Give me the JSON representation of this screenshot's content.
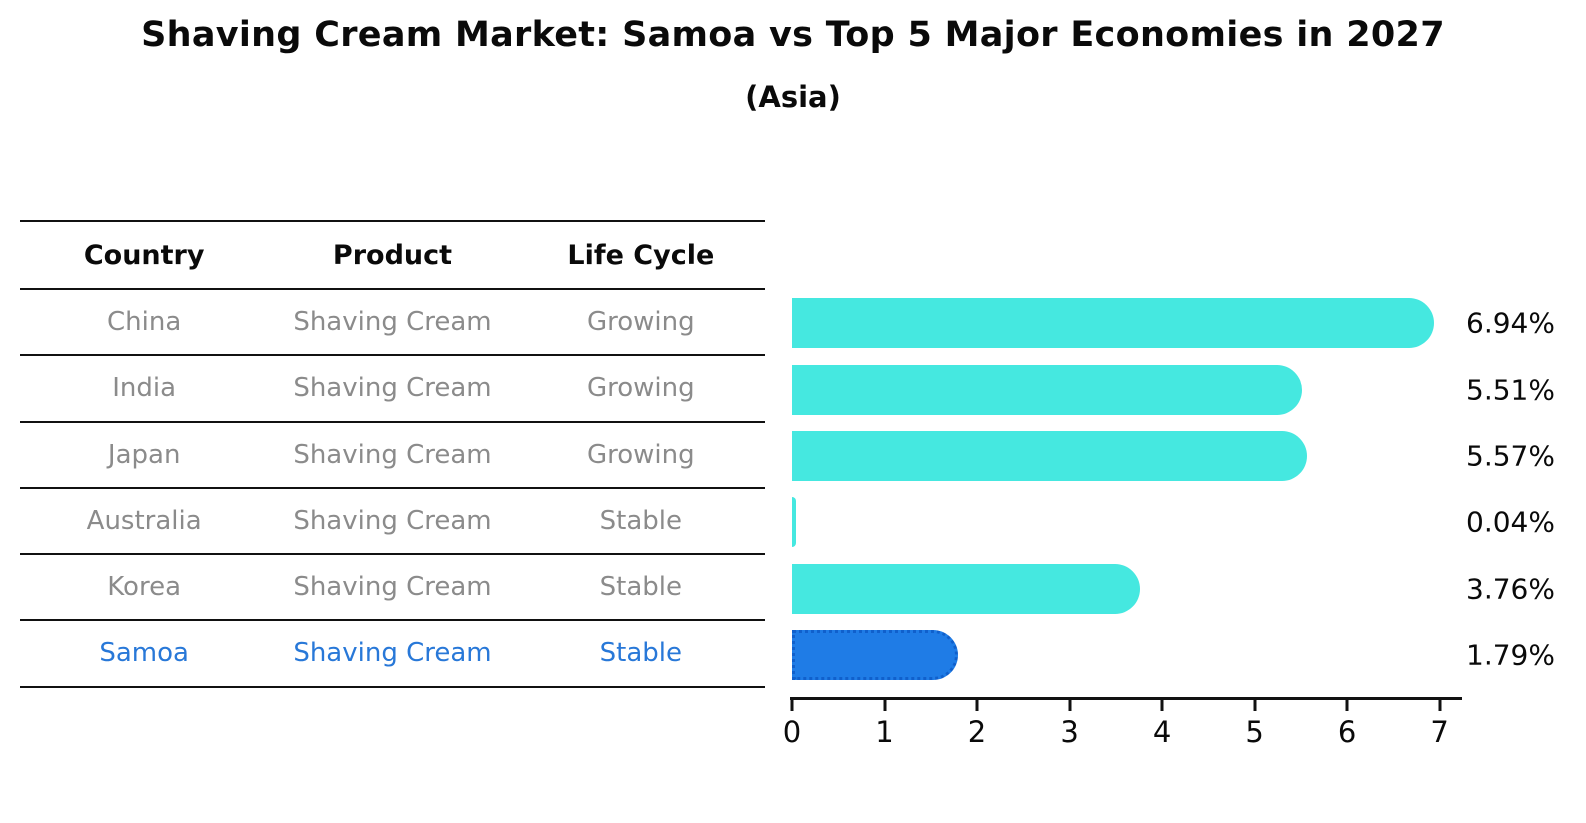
{
  "title": "Shaving Cream Market: Samoa vs Top 5 Major Economies in 2027",
  "subtitle": "(Asia)",
  "table": {
    "headers": [
      "Country",
      "Product",
      "Life Cycle"
    ],
    "rows": [
      {
        "country": "China",
        "product": "Shaving Cream",
        "life_cycle": "Growing",
        "highlighted": false
      },
      {
        "country": "India",
        "product": "Shaving Cream",
        "life_cycle": "Growing",
        "highlighted": false
      },
      {
        "country": "Japan",
        "product": "Shaving Cream",
        "life_cycle": "Growing",
        "highlighted": false
      },
      {
        "country": "Australia",
        "product": "Shaving Cream",
        "life_cycle": "Stable",
        "highlighted": false
      },
      {
        "country": "Korea",
        "product": "Shaving Cream",
        "life_cycle": "Stable",
        "highlighted": false
      },
      {
        "country": "Samoa",
        "product": "Shaving Cream",
        "life_cycle": "Stable",
        "highlighted": true
      }
    ]
  },
  "chart_data": {
    "type": "bar",
    "orientation": "horizontal",
    "title": "Shaving Cream Market: Samoa vs Top 5 Major Economies in 2027",
    "subtitle": "(Asia)",
    "categories": [
      "China",
      "India",
      "Japan",
      "Australia",
      "Korea",
      "Samoa"
    ],
    "values": [
      6.94,
      5.51,
      5.57,
      0.04,
      3.76,
      1.79
    ],
    "value_labels": [
      "6.94%",
      "5.51%",
      "5.57%",
      "0.04%",
      "3.76%",
      "1.79%"
    ],
    "x_ticks": [
      0,
      1,
      2,
      3,
      4,
      5,
      6,
      7
    ],
    "xlim": [
      0,
      7.22
    ],
    "xlabel": "",
    "ylabel": "",
    "grid": false,
    "legend": false,
    "highlight_index": 5,
    "bar_color": "#45e8e0",
    "highlight_bar_color": "#1f7ce6",
    "highlight_border_color": "#1060cc"
  },
  "colors": {
    "background": "#ffffff",
    "heading_text": "#0a0a0a",
    "table_line": "#111111",
    "table_text": "#8b8b8b",
    "highlight_text": "#2878d8"
  }
}
